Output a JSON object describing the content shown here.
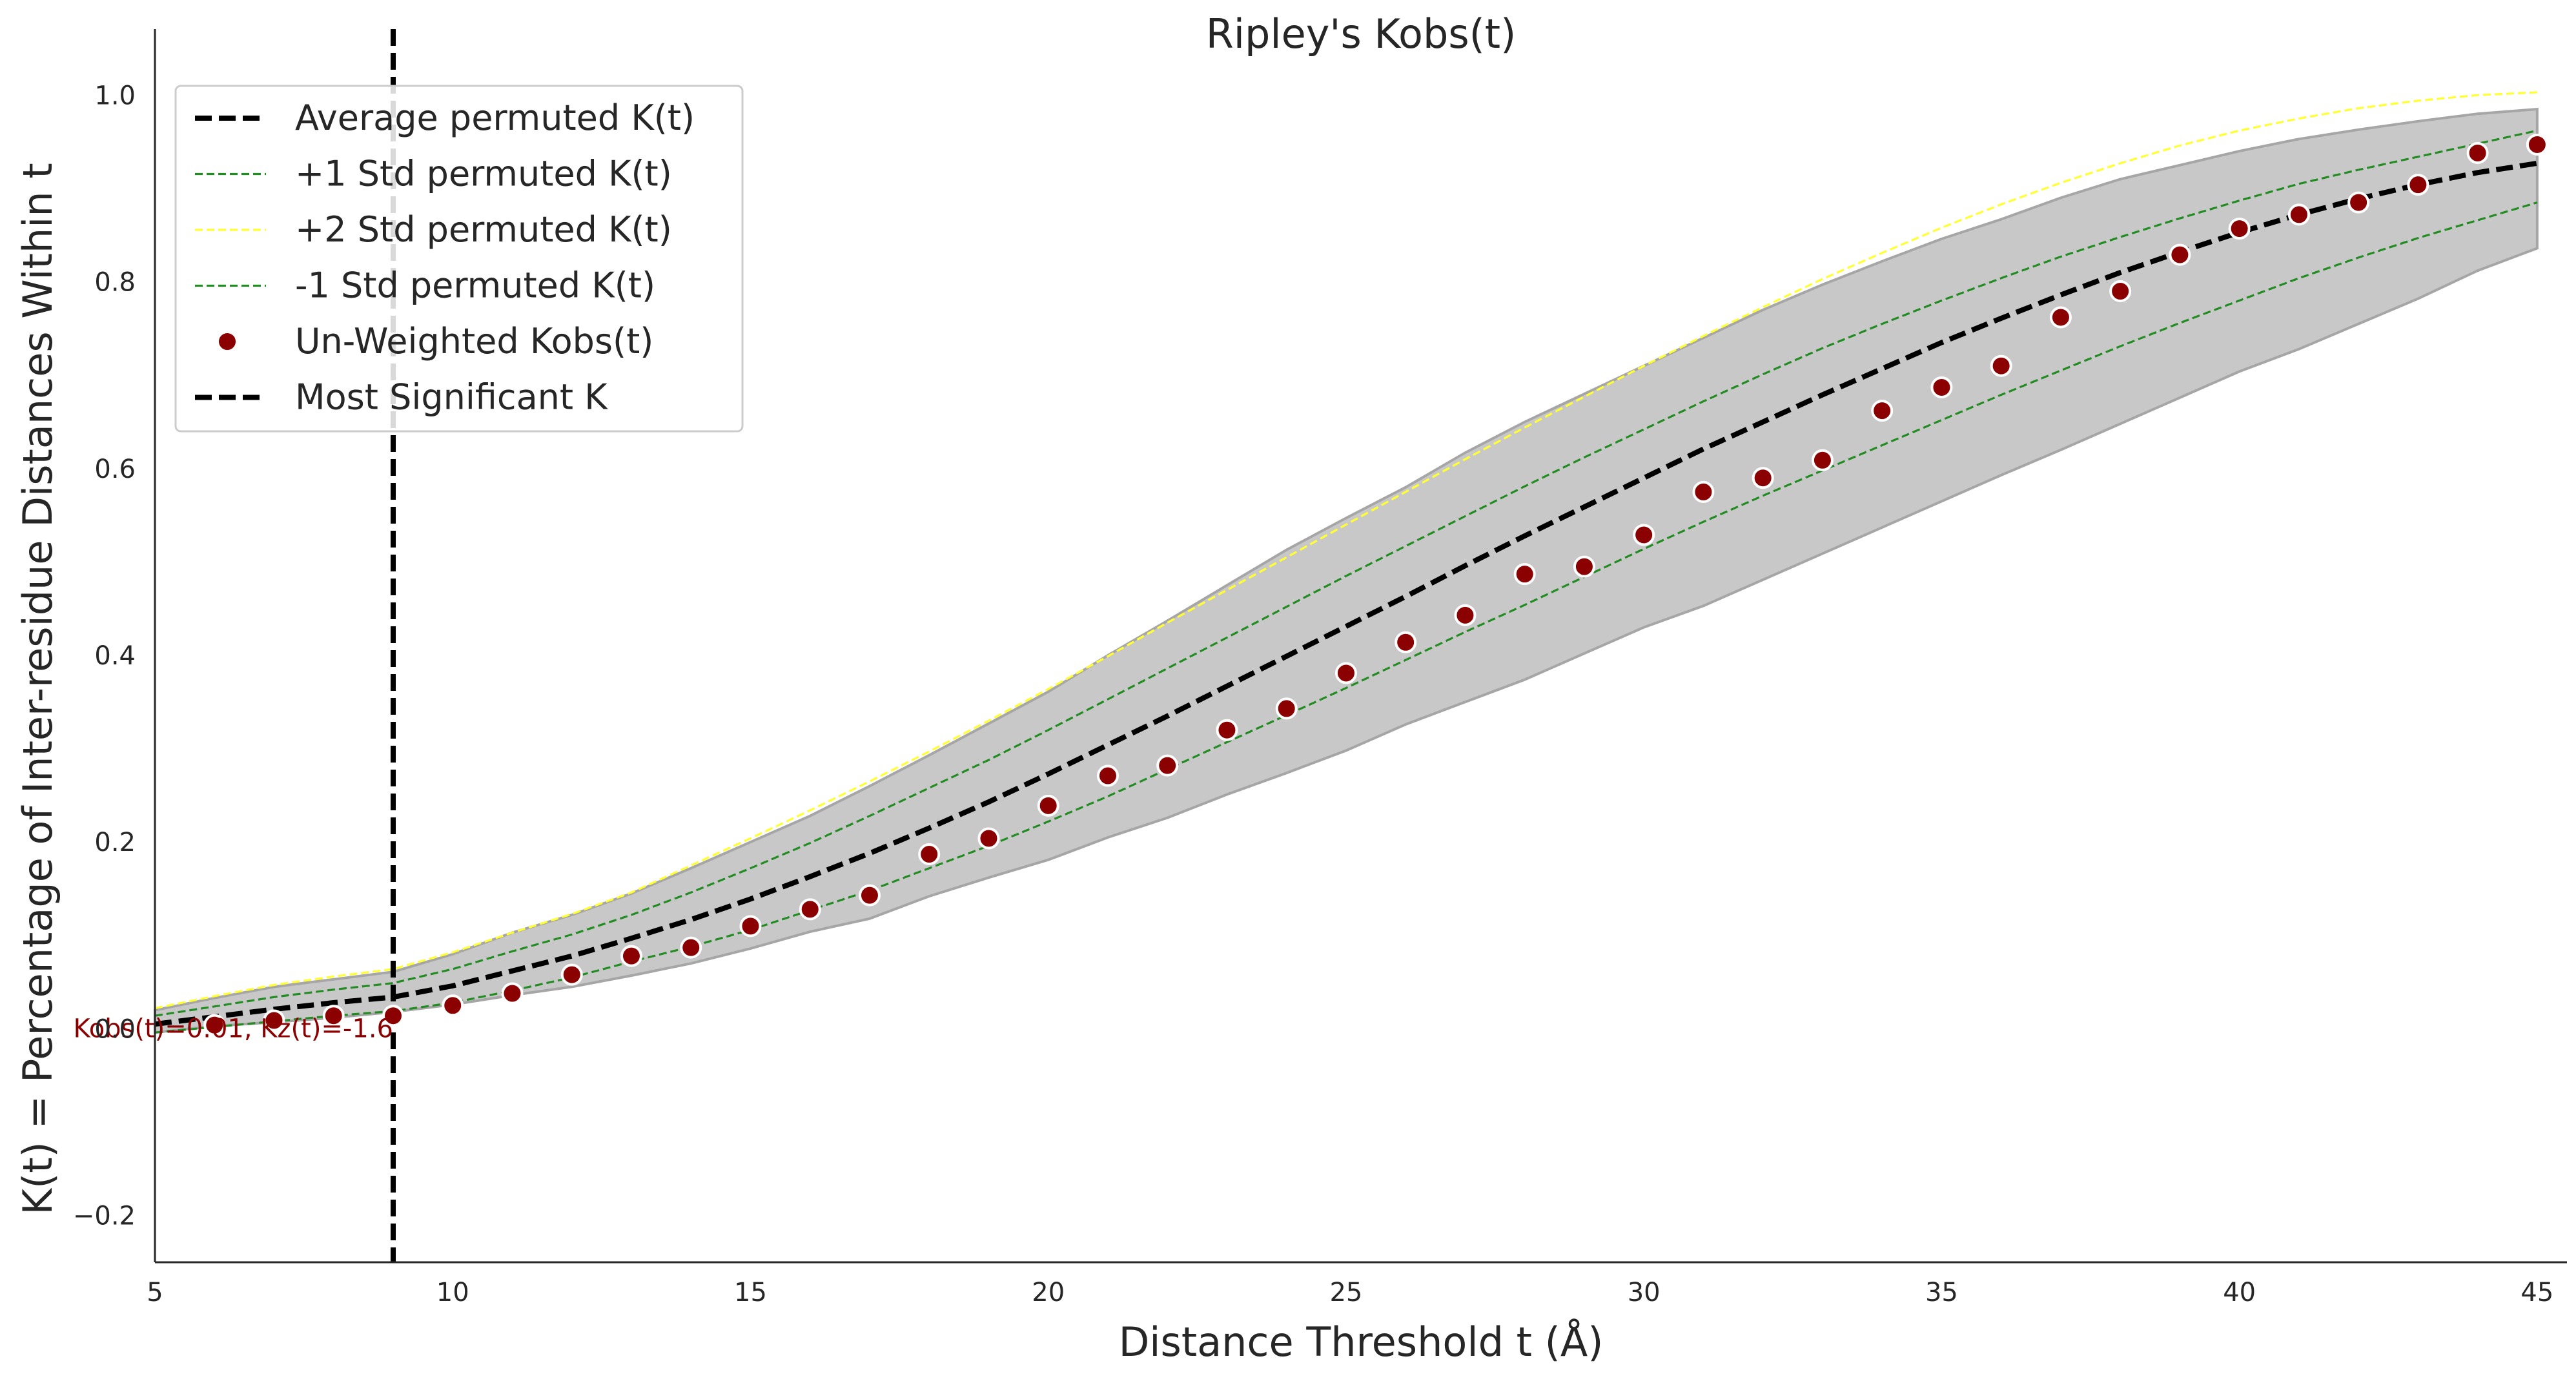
{
  "chart_data": {
    "type": "scatter",
    "title": "Ripley's Kobs(t)",
    "xlabel": "Distance Threshold t (Å)",
    "ylabel": "K(t) = Percentage of Inter-residue Distances Within t",
    "xlim": [
      5,
      45.5
    ],
    "ylim": [
      -0.25,
      1.05
    ],
    "x_ticks": [
      "5",
      "10",
      "15",
      "20",
      "25",
      "30",
      "35",
      "40",
      "45"
    ],
    "y_ticks": [
      "−0.2",
      "0.0",
      "0.2",
      "0.4",
      "0.6",
      "0.8",
      "1.0"
    ],
    "grid": false,
    "legend_position": "top-left",
    "x": [
      5,
      6,
      7,
      8,
      9,
      10,
      11,
      12,
      13,
      14,
      15,
      16,
      17,
      18,
      19,
      20,
      21,
      22,
      23,
      24,
      25,
      26,
      27,
      28,
      29,
      30,
      31,
      32,
      33,
      34,
      35,
      36,
      37,
      38,
      39,
      40,
      41,
      42,
      43,
      44,
      45
    ],
    "envelope": {
      "color": "#c8c8c8",
      "edge_color": "#a6a6a6",
      "upper": [
        0.02,
        0.033,
        0.045,
        0.053,
        0.061,
        0.08,
        0.103,
        0.122,
        0.145,
        0.172,
        0.2,
        0.228,
        0.26,
        0.293,
        0.327,
        0.361,
        0.4,
        0.437,
        0.475,
        0.513,
        0.547,
        0.58,
        0.617,
        0.65,
        0.68,
        0.71,
        0.74,
        0.77,
        0.797,
        0.822,
        0.846,
        0.867,
        0.89,
        0.91,
        0.925,
        0.94,
        0.953,
        0.963,
        0.972,
        0.98,
        0.985
      ],
      "lower": [
        -0.004,
        0.003,
        0.007,
        0.012,
        0.018,
        0.026,
        0.036,
        0.045,
        0.057,
        0.07,
        0.086,
        0.104,
        0.118,
        0.142,
        0.162,
        0.181,
        0.205,
        0.226,
        0.251,
        0.274,
        0.298,
        0.326,
        0.35,
        0.374,
        0.402,
        0.43,
        0.453,
        0.481,
        0.509,
        0.537,
        0.565,
        0.593,
        0.62,
        0.648,
        0.676,
        0.704,
        0.728,
        0.755,
        0.782,
        0.812,
        0.836
      ]
    },
    "series": [
      {
        "name": "Average permuted K(t)",
        "style": "dashed-thick",
        "color": "#000000",
        "values": [
          0.005,
          0.013,
          0.021,
          0.028,
          0.034,
          0.046,
          0.062,
          0.078,
          0.097,
          0.117,
          0.139,
          0.163,
          0.188,
          0.215,
          0.243,
          0.273,
          0.304,
          0.335,
          0.367,
          0.399,
          0.431,
          0.463,
          0.496,
          0.528,
          0.559,
          0.59,
          0.621,
          0.65,
          0.679,
          0.707,
          0.735,
          0.761,
          0.786,
          0.81,
          0.832,
          0.853,
          0.872,
          0.889,
          0.904,
          0.917,
          0.927
        ]
      },
      {
        "name": "+1 Std permuted K(t)",
        "style": "dashed-thin",
        "color": "#228b22",
        "values": [
          0.014,
          0.024,
          0.034,
          0.042,
          0.049,
          0.064,
          0.083,
          0.101,
          0.122,
          0.146,
          0.172,
          0.199,
          0.228,
          0.258,
          0.288,
          0.32,
          0.353,
          0.386,
          0.419,
          0.452,
          0.485,
          0.517,
          0.549,
          0.581,
          0.612,
          0.642,
          0.672,
          0.701,
          0.729,
          0.755,
          0.78,
          0.804,
          0.827,
          0.848,
          0.868,
          0.887,
          0.905,
          0.92,
          0.934,
          0.948,
          0.962
        ]
      },
      {
        "name": "+2 Std permuted K(t)",
        "style": "dashed-thin",
        "color": "#ffff33",
        "values": [
          0.022,
          0.035,
          0.047,
          0.056,
          0.064,
          0.082,
          0.103,
          0.123,
          0.146,
          0.175,
          0.204,
          0.234,
          0.265,
          0.297,
          0.33,
          0.364,
          0.399,
          0.435,
          0.47,
          0.505,
          0.54,
          0.575,
          0.61,
          0.644,
          0.677,
          0.71,
          0.742,
          0.773,
          0.803,
          0.831,
          0.858,
          0.883,
          0.906,
          0.927,
          0.946,
          0.962,
          0.975,
          0.986,
          0.994,
          1.0,
          1.003
        ]
      },
      {
        "name": "-1 Std permuted K(t)",
        "style": "dashed-thin",
        "color": "#228b22",
        "values": [
          -0.004,
          0.002,
          0.008,
          0.014,
          0.019,
          0.028,
          0.041,
          0.055,
          0.072,
          0.088,
          0.106,
          0.127,
          0.148,
          0.172,
          0.196,
          0.222,
          0.249,
          0.278,
          0.307,
          0.336,
          0.365,
          0.395,
          0.425,
          0.454,
          0.484,
          0.514,
          0.543,
          0.571,
          0.598,
          0.625,
          0.652,
          0.679,
          0.705,
          0.731,
          0.756,
          0.78,
          0.804,
          0.826,
          0.847,
          0.866,
          0.885
        ]
      },
      {
        "name": "Un-Weighted Kobs(t)",
        "style": "markers",
        "color": "#8b0000",
        "x": [
          6,
          7,
          8,
          9,
          10,
          11,
          12,
          13,
          14,
          15,
          16,
          17,
          18,
          19,
          20,
          21,
          22,
          23,
          24,
          25,
          26,
          27,
          28,
          29,
          30,
          31,
          32,
          33,
          34,
          35,
          36,
          37,
          38,
          39,
          40,
          41,
          42,
          43,
          44,
          45
        ],
        "values": [
          0.004,
          0.009,
          0.014,
          0.014,
          0.025,
          0.038,
          0.058,
          0.078,
          0.087,
          0.11,
          0.128,
          0.143,
          0.187,
          0.204,
          0.239,
          0.271,
          0.282,
          0.32,
          0.343,
          0.381,
          0.414,
          0.443,
          0.487,
          0.495,
          0.529,
          0.575,
          0.59,
          0.609,
          0.662,
          0.687,
          0.71,
          0.762,
          0.79,
          0.829,
          0.857,
          0.872,
          0.885,
          0.904,
          0.938,
          0.947
        ]
      }
    ],
    "vline": {
      "name": "Most Significant K",
      "x": 9,
      "color": "#000000"
    },
    "annotation": {
      "text": "Kobs(t)=0.01, Kz(t)=-1.6",
      "x": 9,
      "y": 0.0,
      "color": "#8b0000"
    }
  }
}
